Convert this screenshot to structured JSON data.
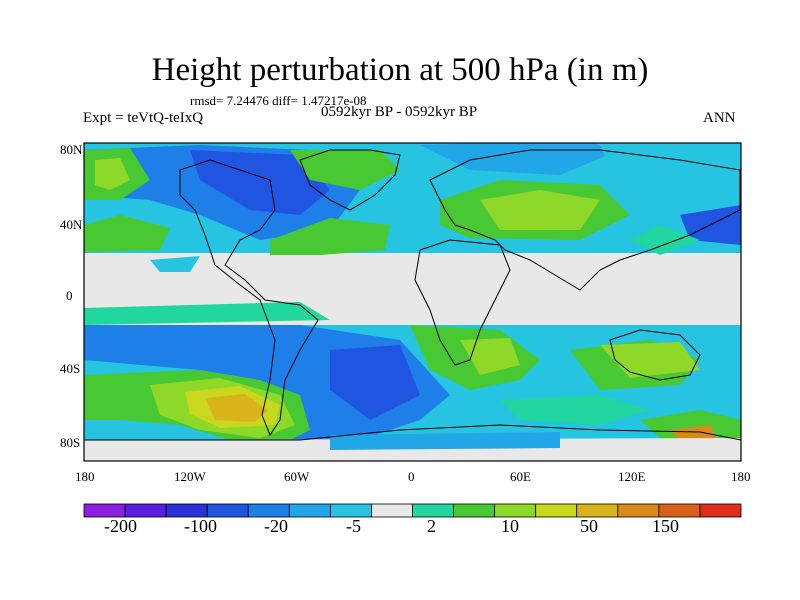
{
  "title": "Height perturbation at 500 hPa (in m)",
  "stats": "rmsd= 7.24476 diff= 1.47217e-08",
  "experiment": "Expt = teVtQ-teIxQ",
  "period": "0592kyr BP - 0592kyr BP",
  "season": "ANN",
  "axes": {
    "lat_ticks": [
      "80N",
      "40N",
      "0",
      "40S",
      "80S"
    ],
    "lon_ticks": [
      "180",
      "120W",
      "60W",
      "0",
      "60E",
      "120E",
      "180"
    ]
  },
  "colorbar": {
    "colors": [
      "#8b1fe0",
      "#5a1fe0",
      "#2a32d8",
      "#1f55e0",
      "#1f7fe8",
      "#21a6e8",
      "#26c4e0",
      "#e8e8e8",
      "#22d6a0",
      "#48c832",
      "#8ed82a",
      "#c8d81c",
      "#d8b41a",
      "#d88a18",
      "#d8601a",
      "#e02e1c"
    ],
    "labels": [
      "-200",
      "-100",
      "-20",
      "-5",
      "2",
      "10",
      "50",
      "150"
    ]
  },
  "map_fill": {
    "background": "#e8e8e8",
    "cyan": "#26c4e0",
    "light_blue": "#21a6e8",
    "blue": "#1f7fe8",
    "dark_blue": "#1f55e0",
    "teal": "#22d6a0",
    "green": "#48c832",
    "yellow_green": "#8ed82a",
    "yellow": "#c8d81c",
    "gold": "#d8b41a",
    "orange": "#d88a18"
  }
}
